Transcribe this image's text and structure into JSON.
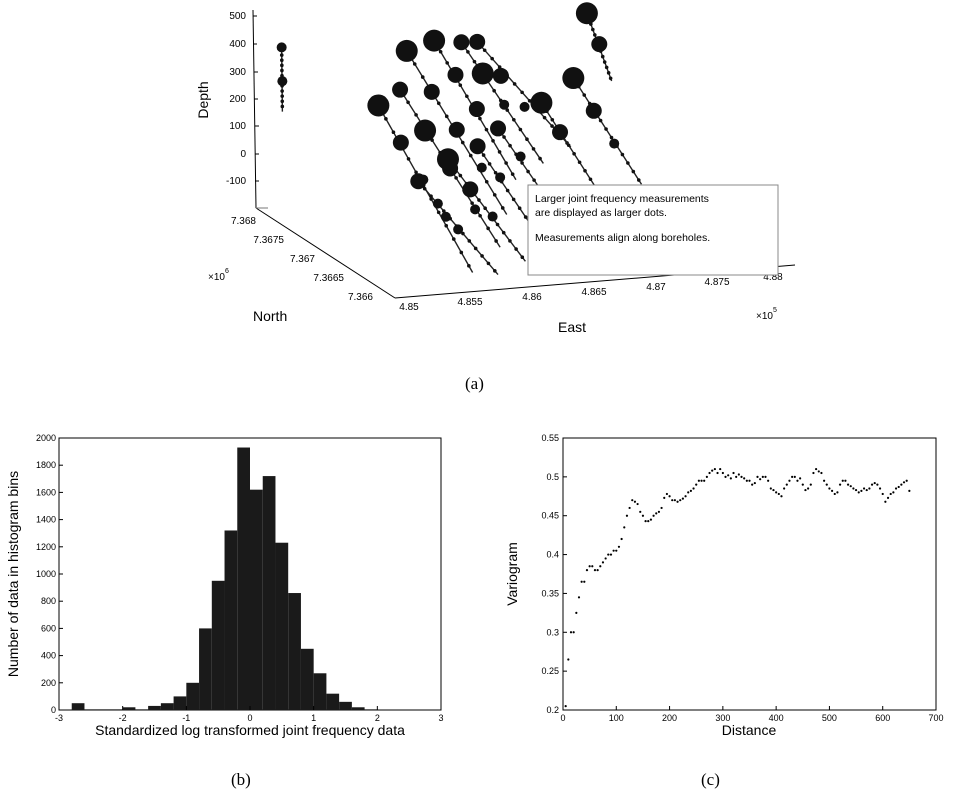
{
  "panel_labels": [
    "(a)",
    "(b)",
    "(c)"
  ],
  "chart_data": [
    {
      "type": "scatter",
      "subtype": "3d-scatter",
      "panel": "(a)",
      "xlabel": "East",
      "ylabel": "North",
      "zlabel": "Depth",
      "x_ticks": [
        "4.85",
        "4.855",
        "4.86",
        "4.865",
        "4.87",
        "4.875",
        "4.88"
      ],
      "x_multiplier": "×10",
      "x_exponent": "5",
      "y_ticks": [
        "7.366",
        "7.3665",
        "7.367",
        "7.3675",
        "7.368"
      ],
      "y_multiplier": "×10",
      "y_exponent": "6",
      "z_ticks": [
        "-100",
        "0",
        "100",
        "200",
        "300",
        "400",
        "500"
      ],
      "xlim": [
        484800,
        488300
      ],
      "ylim": [
        7366000,
        7368000
      ],
      "zlim": [
        -150,
        520
      ],
      "annotation": [
        "Larger joint frequency measurements",
        "are displayed as larger dots.",
        "Measurements align along boreholes."
      ],
      "marker_color": "#111111",
      "boreholes": [
        {
          "x1": 484900,
          "y1": 7367800,
          "z1": 200,
          "x2": 484980,
          "y2": 7367950,
          "z2": 390
        },
        {
          "x1": 485250,
          "y1": 7367000,
          "z1": 330,
          "x2": 485600,
          "y2": 7366200,
          "z2": -120
        },
        {
          "x1": 485500,
          "y1": 7367100,
          "z1": 360,
          "x2": 485900,
          "y2": 7366300,
          "z2": -60
        },
        {
          "x1": 485800,
          "y1": 7367500,
          "z1": 420,
          "x2": 486200,
          "y2": 7366700,
          "z2": -20
        },
        {
          "x1": 486100,
          "y1": 7367600,
          "z1": 430,
          "x2": 486400,
          "y2": 7366900,
          "z2": 60
        },
        {
          "x1": 486400,
          "y1": 7367700,
          "z1": 400,
          "x2": 486700,
          "y2": 7367000,
          "z2": 90
        },
        {
          "x1": 486600,
          "y1": 7367800,
          "z1": 380,
          "x2": 487000,
          "y2": 7367100,
          "z2": 120
        },
        {
          "x1": 485300,
          "y1": 7366500,
          "z1": 150,
          "x2": 485700,
          "y2": 7366000,
          "z2": -100
        },
        {
          "x1": 485650,
          "y1": 7366650,
          "z1": 190,
          "x2": 486000,
          "y2": 7366100,
          "z2": -80
        },
        {
          "x1": 486000,
          "y1": 7366800,
          "z1": 200,
          "x2": 486300,
          "y2": 7366200,
          "z2": -90
        },
        {
          "x1": 486300,
          "y1": 7367000,
          "z1": 220,
          "x2": 486600,
          "y2": 7366400,
          "z2": -60
        },
        {
          "x1": 486800,
          "y1": 7367200,
          "z1": 260,
          "x2": 487100,
          "y2": 7366700,
          "z2": -30
        },
        {
          "x1": 487200,
          "y1": 7367400,
          "z1": 300,
          "x2": 487500,
          "y2": 7366900,
          "z2": 10
        },
        {
          "x1": 487650,
          "y1": 7367950,
          "z1": 420,
          "x2": 487750,
          "y2": 7367750,
          "z2": 220
        }
      ],
      "measurements": [
        {
          "x": 485250,
          "y": 7367000,
          "z": 330,
          "f": 3
        },
        {
          "x": 485340,
          "y": 7366820,
          "z": 230,
          "f": 2
        },
        {
          "x": 485430,
          "y": 7366640,
          "z": 130,
          "f": 1
        },
        {
          "x": 485520,
          "y": 7366460,
          "z": 30,
          "f": 1
        },
        {
          "x": 485500,
          "y": 7367100,
          "z": 360,
          "f": 2
        },
        {
          "x": 485600,
          "y": 7366900,
          "z": 250,
          "f": 3
        },
        {
          "x": 485700,
          "y": 7366700,
          "z": 150,
          "f": 2
        },
        {
          "x": 485800,
          "y": 7366500,
          "z": 40,
          "f": 1
        },
        {
          "x": 485800,
          "y": 7367500,
          "z": 420,
          "f": 3
        },
        {
          "x": 485900,
          "y": 7367300,
          "z": 310,
          "f": 2
        },
        {
          "x": 486000,
          "y": 7367100,
          "z": 210,
          "f": 2
        },
        {
          "x": 486100,
          "y": 7366900,
          "z": 110,
          "f": 1
        },
        {
          "x": 486100,
          "y": 7367600,
          "z": 430,
          "f": 3
        },
        {
          "x": 486180,
          "y": 7367420,
          "z": 340,
          "f": 2
        },
        {
          "x": 486260,
          "y": 7367240,
          "z": 250,
          "f": 2
        },
        {
          "x": 486400,
          "y": 7367700,
          "z": 400,
          "f": 2
        },
        {
          "x": 486480,
          "y": 7367520,
          "z": 320,
          "f": 3
        },
        {
          "x": 486560,
          "y": 7367340,
          "z": 240,
          "f": 1
        },
        {
          "x": 486600,
          "y": 7367800,
          "z": 380,
          "f": 2
        },
        {
          "x": 486700,
          "y": 7367620,
          "z": 290,
          "f": 2
        },
        {
          "x": 486800,
          "y": 7367440,
          "z": 210,
          "f": 1
        },
        {
          "x": 485300,
          "y": 7366500,
          "z": 150,
          "f": 2
        },
        {
          "x": 485400,
          "y": 7366380,
          "z": 90,
          "f": 1
        },
        {
          "x": 485500,
          "y": 7366250,
          "z": 20,
          "f": 1
        },
        {
          "x": 485650,
          "y": 7366650,
          "z": 190,
          "f": 3
        },
        {
          "x": 485750,
          "y": 7366490,
          "z": 110,
          "f": 2
        },
        {
          "x": 485850,
          "y": 7366330,
          "z": 40,
          "f": 1
        },
        {
          "x": 486000,
          "y": 7366800,
          "z": 200,
          "f": 2
        },
        {
          "x": 486090,
          "y": 7366620,
          "z": 120,
          "f": 1
        },
        {
          "x": 486300,
          "y": 7367000,
          "z": 220,
          "f": 2
        },
        {
          "x": 486390,
          "y": 7366820,
          "z": 150,
          "f": 1
        },
        {
          "x": 486800,
          "y": 7367200,
          "z": 260,
          "f": 3
        },
        {
          "x": 486880,
          "y": 7367060,
          "z": 180,
          "f": 2
        },
        {
          "x": 487200,
          "y": 7367400,
          "z": 300,
          "f": 3
        },
        {
          "x": 487290,
          "y": 7367250,
          "z": 210,
          "f": 2
        },
        {
          "x": 487380,
          "y": 7367100,
          "z": 120,
          "f": 1
        },
        {
          "x": 487650,
          "y": 7367950,
          "z": 420,
          "f": 3
        },
        {
          "x": 487700,
          "y": 7367850,
          "z": 330,
          "f": 2
        },
        {
          "x": 484980,
          "y": 7367950,
          "z": 390,
          "f": 1
        },
        {
          "x": 484940,
          "y": 7367870,
          "z": 290,
          "f": 1
        }
      ]
    },
    {
      "type": "bar",
      "subtype": "histogram",
      "panel": "(b)",
      "xlabel": "Standardized log transformed joint frequency data",
      "ylabel": "Number of data in histogram bins",
      "xlim": [
        -3,
        3
      ],
      "ylim": [
        0,
        2000
      ],
      "x_ticks": [
        -3,
        -2,
        -1,
        0,
        1,
        2,
        3
      ],
      "y_ticks": [
        0,
        200,
        400,
        600,
        800,
        1000,
        1200,
        1400,
        1600,
        1800,
        2000
      ],
      "bar_color": "#1a1a1a",
      "bin_width": 0.2,
      "bins": [
        {
          "x0": -2.8,
          "value": 50
        },
        {
          "x0": -2.6,
          "value": 5
        },
        {
          "x0": -2.4,
          "value": 5
        },
        {
          "x0": -2.2,
          "value": 5
        },
        {
          "x0": -2.0,
          "value": 20
        },
        {
          "x0": -1.8,
          "value": 5
        },
        {
          "x0": -1.6,
          "value": 30
        },
        {
          "x0": -1.4,
          "value": 50
        },
        {
          "x0": -1.2,
          "value": 100
        },
        {
          "x0": -1.0,
          "value": 200
        },
        {
          "x0": -0.8,
          "value": 600
        },
        {
          "x0": -0.6,
          "value": 950
        },
        {
          "x0": -0.4,
          "value": 1320
        },
        {
          "x0": -0.2,
          "value": 1930
        },
        {
          "x0": 0.0,
          "value": 1620
        },
        {
          "x0": 0.2,
          "value": 1720
        },
        {
          "x0": 0.4,
          "value": 1230
        },
        {
          "x0": 0.6,
          "value": 860
        },
        {
          "x0": 0.8,
          "value": 450
        },
        {
          "x0": 1.0,
          "value": 270
        },
        {
          "x0": 1.2,
          "value": 120
        },
        {
          "x0": 1.4,
          "value": 60
        },
        {
          "x0": 1.6,
          "value": 20
        },
        {
          "x0": 1.8,
          "value": 5
        }
      ]
    },
    {
      "type": "scatter",
      "panel": "(c)",
      "xlabel": "Distance",
      "ylabel": "Variogram",
      "xlim": [
        0,
        700
      ],
      "ylim": [
        0.2,
        0.55
      ],
      "x_ticks": [
        0,
        100,
        200,
        300,
        400,
        500,
        600,
        700
      ],
      "y_ticks": [
        0.2,
        0.25,
        0.3,
        0.35,
        0.4,
        0.45,
        0.5,
        0.55
      ],
      "marker_color": "#000000",
      "x": [
        5,
        10,
        15,
        20,
        25,
        30,
        35,
        40,
        45,
        50,
        55,
        60,
        65,
        70,
        75,
        80,
        85,
        90,
        95,
        100,
        105,
        110,
        115,
        120,
        125,
        130,
        135,
        140,
        145,
        150,
        155,
        160,
        165,
        170,
        175,
        180,
        185,
        190,
        195,
        200,
        205,
        210,
        215,
        220,
        225,
        230,
        235,
        240,
        245,
        250,
        255,
        260,
        265,
        270,
        275,
        280,
        285,
        290,
        295,
        300,
        305,
        310,
        315,
        320,
        325,
        330,
        335,
        340,
        345,
        350,
        355,
        360,
        365,
        370,
        375,
        380,
        385,
        390,
        395,
        400,
        405,
        410,
        415,
        420,
        425,
        430,
        435,
        440,
        445,
        450,
        455,
        460,
        465,
        470,
        475,
        480,
        485,
        490,
        495,
        500,
        505,
        510,
        515,
        520,
        525,
        530,
        535,
        540,
        545,
        550,
        555,
        560,
        565,
        570,
        575,
        580,
        585,
        590,
        595,
        600,
        605,
        610,
        615,
        620,
        625,
        630,
        635,
        640,
        645,
        650
      ],
      "y": [
        0.205,
        0.265,
        0.3,
        0.3,
        0.325,
        0.345,
        0.365,
        0.365,
        0.38,
        0.385,
        0.385,
        0.38,
        0.38,
        0.385,
        0.39,
        0.395,
        0.4,
        0.4,
        0.405,
        0.405,
        0.41,
        0.42,
        0.435,
        0.45,
        0.46,
        0.47,
        0.468,
        0.465,
        0.455,
        0.45,
        0.443,
        0.443,
        0.445,
        0.45,
        0.453,
        0.455,
        0.46,
        0.473,
        0.478,
        0.475,
        0.47,
        0.47,
        0.468,
        0.47,
        0.472,
        0.475,
        0.48,
        0.482,
        0.485,
        0.49,
        0.495,
        0.495,
        0.495,
        0.5,
        0.505,
        0.508,
        0.51,
        0.505,
        0.51,
        0.505,
        0.5,
        0.502,
        0.498,
        0.505,
        0.5,
        0.503,
        0.5,
        0.498,
        0.495,
        0.495,
        0.49,
        0.492,
        0.5,
        0.497,
        0.5,
        0.5,
        0.495,
        0.485,
        0.483,
        0.48,
        0.478,
        0.475,
        0.485,
        0.49,
        0.495,
        0.5,
        0.5,
        0.495,
        0.498,
        0.49,
        0.483,
        0.485,
        0.49,
        0.505,
        0.51,
        0.507,
        0.505,
        0.495,
        0.49,
        0.485,
        0.482,
        0.478,
        0.48,
        0.49,
        0.495,
        0.495,
        0.49,
        0.488,
        0.485,
        0.483,
        0.48,
        0.482,
        0.485,
        0.483,
        0.485,
        0.49,
        0.492,
        0.49,
        0.485,
        0.478,
        0.468,
        0.473,
        0.478,
        0.48,
        0.485,
        0.487,
        0.49,
        0.493,
        0.495,
        0.482
      ]
    }
  ]
}
